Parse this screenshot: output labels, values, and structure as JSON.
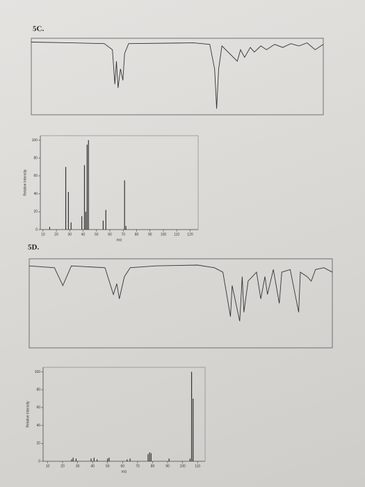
{
  "labels": [
    "5C.",
    "5D."
  ],
  "chart_data": [
    {
      "type": "line",
      "x": [
        4000,
        3500,
        3100,
        3000,
        2970,
        2950,
        2930,
        2900,
        2870,
        2850,
        2800,
        2000,
        1800,
        1740,
        1715,
        1690,
        1650,
        1460,
        1420,
        1370,
        1300,
        1250,
        1170,
        1100,
        1000,
        900,
        800,
        700,
        600,
        500,
        400
      ],
      "values": [
        95,
        94,
        93,
        85,
        40,
        70,
        35,
        60,
        45,
        80,
        93,
        94,
        92,
        60,
        8,
        60,
        90,
        70,
        85,
        75,
        88,
        82,
        90,
        85,
        92,
        88,
        93,
        90,
        94,
        85,
        92
      ],
      "xlim": [
        4000,
        400
      ],
      "ylim": [
        0,
        100
      ],
      "color": "#333333"
    },
    {
      "type": "bar",
      "x": [
        15,
        27,
        29,
        31,
        39,
        41,
        42,
        43,
        44,
        55,
        57,
        71,
        72
      ],
      "values": [
        3,
        70,
        42,
        8,
        15,
        72,
        20,
        95,
        100,
        10,
        22,
        55,
        4
      ],
      "xlim": [
        8,
        126
      ],
      "ylim": [
        0,
        105
      ],
      "xticks": [
        10,
        20,
        30,
        40,
        50,
        60,
        70,
        80,
        90,
        100,
        110,
        120
      ],
      "yticks": [
        0,
        20,
        40,
        60,
        80,
        100
      ],
      "xlabel": "m/z",
      "ylabel": "Relative Intensity",
      "color": "#333333"
    },
    {
      "type": "line",
      "x": [
        4000,
        3700,
        3600,
        3500,
        3100,
        3000,
        2960,
        2930,
        2870,
        2800,
        2500,
        2000,
        1800,
        1700,
        1610,
        1590,
        1500,
        1470,
        1450,
        1400,
        1300,
        1250,
        1200,
        1170,
        1100,
        1030,
        1000,
        900,
        800,
        780,
        700,
        650,
        600,
        500,
        400
      ],
      "values": [
        92,
        90,
        70,
        92,
        90,
        60,
        72,
        55,
        80,
        90,
        92,
        93,
        90,
        85,
        35,
        70,
        30,
        80,
        40,
        75,
        85,
        55,
        80,
        60,
        88,
        50,
        85,
        88,
        40,
        85,
        80,
        75,
        88,
        90,
        85
      ],
      "xlim": [
        4000,
        400
      ],
      "ylim": [
        0,
        100
      ],
      "color": "#333333"
    },
    {
      "type": "bar",
      "x": [
        26,
        27,
        29,
        39,
        41,
        43,
        50,
        51,
        63,
        65,
        77,
        78,
        79,
        91,
        105,
        106,
        107
      ],
      "values": [
        2,
        4,
        3,
        3,
        4,
        2,
        3,
        4,
        2,
        3,
        8,
        10,
        9,
        3,
        3,
        100,
        70
      ],
      "xlim": [
        7,
        115
      ],
      "ylim": [
        0,
        105
      ],
      "xticks": [
        10,
        20,
        30,
        40,
        50,
        60,
        70,
        80,
        90,
        100,
        110
      ],
      "yticks": [
        0,
        20,
        40,
        60,
        80,
        100
      ],
      "xlabel": "m/z",
      "ylabel": "Relative Intensity",
      "color": "#333333"
    }
  ]
}
